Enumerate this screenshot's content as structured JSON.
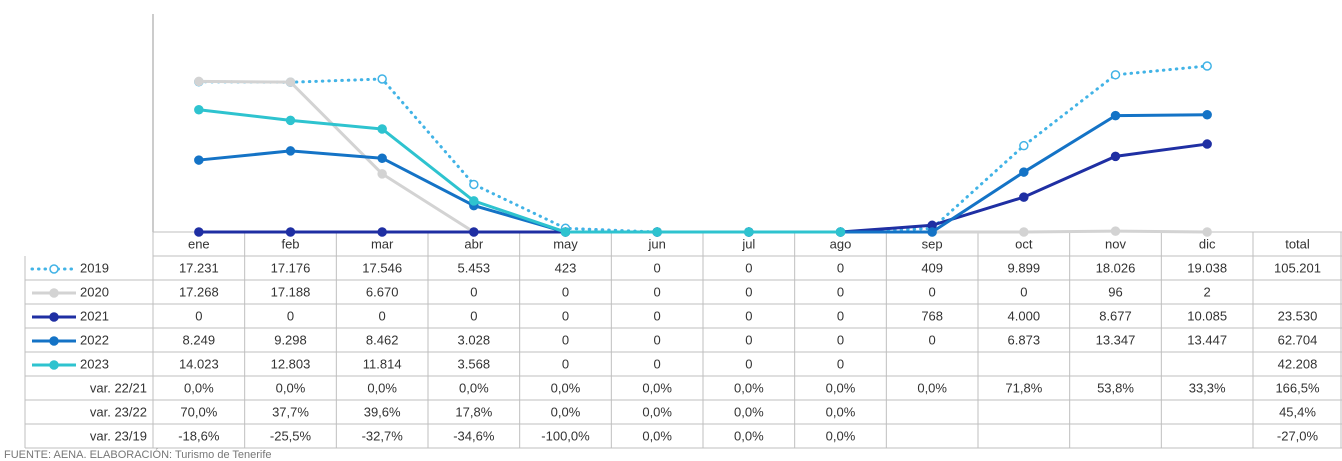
{
  "chart_data": {
    "type": "line",
    "categories": [
      "ene",
      "feb",
      "mar",
      "abr",
      "may",
      "jun",
      "jul",
      "ago",
      "sep",
      "oct",
      "nov",
      "dic"
    ],
    "total_header": "total",
    "ylim": [
      0,
      25000
    ],
    "series": [
      {
        "name": "2019",
        "color": "#41b3e6",
        "dotted": true,
        "hollow": true,
        "values": [
          17231,
          17176,
          17546,
          5453,
          423,
          0,
          0,
          0,
          409,
          9899,
          18026,
          19038
        ],
        "value_labels": [
          "17.231",
          "17.176",
          "17.546",
          "5.453",
          "423",
          "0",
          "0",
          "0",
          "409",
          "9.899",
          "18.026",
          "19.038"
        ],
        "total": "105.201"
      },
      {
        "name": "2020",
        "color": "#d3d3d3",
        "dotted": false,
        "hollow": false,
        "values": [
          17268,
          17188,
          6670,
          0,
          0,
          0,
          0,
          0,
          0,
          0,
          96,
          2
        ],
        "value_labels": [
          "17.268",
          "17.188",
          "6.670",
          "0",
          "0",
          "0",
          "0",
          "0",
          "0",
          "0",
          "96",
          "2"
        ],
        "total": null
      },
      {
        "name": "2021",
        "color": "#1f2fa3",
        "dotted": false,
        "hollow": false,
        "values": [
          0,
          0,
          0,
          0,
          0,
          0,
          0,
          0,
          768,
          4000,
          8677,
          10085
        ],
        "value_labels": [
          "0",
          "0",
          "0",
          "0",
          "0",
          "0",
          "0",
          "0",
          "768",
          "4.000",
          "8.677",
          "10.085"
        ],
        "total": "23.530"
      },
      {
        "name": "2022",
        "color": "#1473c6",
        "dotted": false,
        "hollow": false,
        "values": [
          8249,
          9298,
          8462,
          3028,
          0,
          0,
          0,
          0,
          0,
          6873,
          13347,
          13447
        ],
        "value_labels": [
          "8.249",
          "9.298",
          "8.462",
          "3.028",
          "0",
          "0",
          "0",
          "0",
          "0",
          "6.873",
          "13.347",
          "13.447"
        ],
        "total": "62.704"
      },
      {
        "name": "2023",
        "color": "#2ec3cf",
        "dotted": false,
        "hollow": false,
        "values": [
          14023,
          12803,
          11814,
          3568,
          0,
          0,
          0,
          0,
          null,
          null,
          null,
          null
        ],
        "value_labels": [
          "14.023",
          "12.803",
          "11.814",
          "3.568",
          "0",
          "0",
          "0",
          "0",
          null,
          null,
          null,
          null
        ],
        "total": "42.208"
      }
    ],
    "var_rows": [
      {
        "label": "var. 22/21",
        "cells": [
          "0,0%",
          "0,0%",
          "0,0%",
          "0,0%",
          "0,0%",
          "0,0%",
          "0,0%",
          "0,0%",
          "0,0%",
          "71,8%",
          "53,8%",
          "33,3%"
        ],
        "total": "166,5%"
      },
      {
        "label": "var. 23/22",
        "cells": [
          "70,0%",
          "37,7%",
          "39,6%",
          "17,8%",
          "0,0%",
          "0,0%",
          "0,0%",
          "0,0%",
          null,
          null,
          null,
          null
        ],
        "total": "45,4%"
      },
      {
        "label": "var. 23/19",
        "cells": [
          "-18,6%",
          "-25,5%",
          "-32,7%",
          "-34,6%",
          "-100,0%",
          "0,0%",
          "0,0%",
          "0,0%",
          null,
          null,
          null,
          null
        ],
        "total": "-27,0%"
      }
    ],
    "source": "FUENTE: AENA. ELABORACIÓN: Turismo de Tenerife"
  }
}
